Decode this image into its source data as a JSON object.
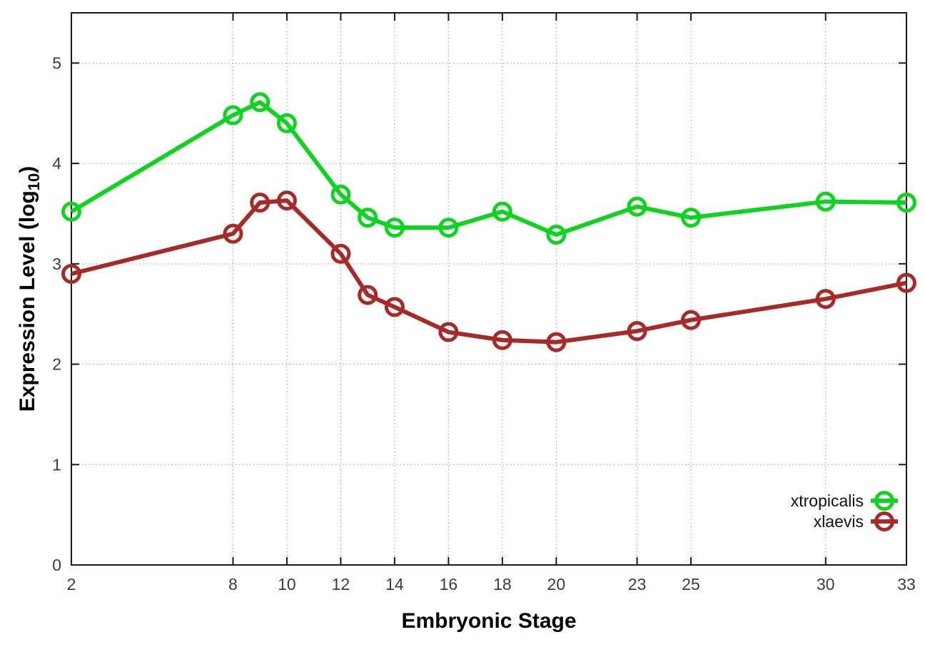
{
  "chart_data": {
    "type": "line",
    "title": "",
    "xlabel": "Embryonic Stage",
    "ylabel_prefix": "Expression Level (log",
    "ylabel_sub": "10",
    "ylabel_suffix": ")",
    "x": [
      2,
      8,
      9,
      10,
      12,
      13,
      14,
      16,
      18,
      20,
      23,
      25,
      30,
      33
    ],
    "xticks": [
      2,
      8,
      10,
      12,
      14,
      16,
      18,
      20,
      23,
      25,
      30,
      33
    ],
    "yticks": [
      0,
      1,
      2,
      3,
      4,
      5
    ],
    "xlim": [
      2,
      33
    ],
    "ylim": [
      0,
      5.5
    ],
    "grid": true,
    "grid_color": "#9a9a9a",
    "border_color": "#1a1a1a",
    "legend_position": "bottom-right-inside",
    "series": [
      {
        "name": "xtropicalis",
        "color": "#0fd41f",
        "marker": "open-circle",
        "values": [
          3.52,
          4.48,
          4.61,
          4.4,
          3.69,
          3.46,
          3.36,
          3.36,
          3.52,
          3.29,
          3.57,
          3.46,
          3.62,
          3.61
        ]
      },
      {
        "name": "xlaevis",
        "color": "#a82a28",
        "marker": "open-circle",
        "values": [
          2.9,
          3.3,
          3.61,
          3.63,
          3.1,
          2.69,
          2.57,
          2.32,
          2.24,
          2.22,
          2.33,
          2.44,
          2.65,
          2.81
        ]
      }
    ]
  }
}
